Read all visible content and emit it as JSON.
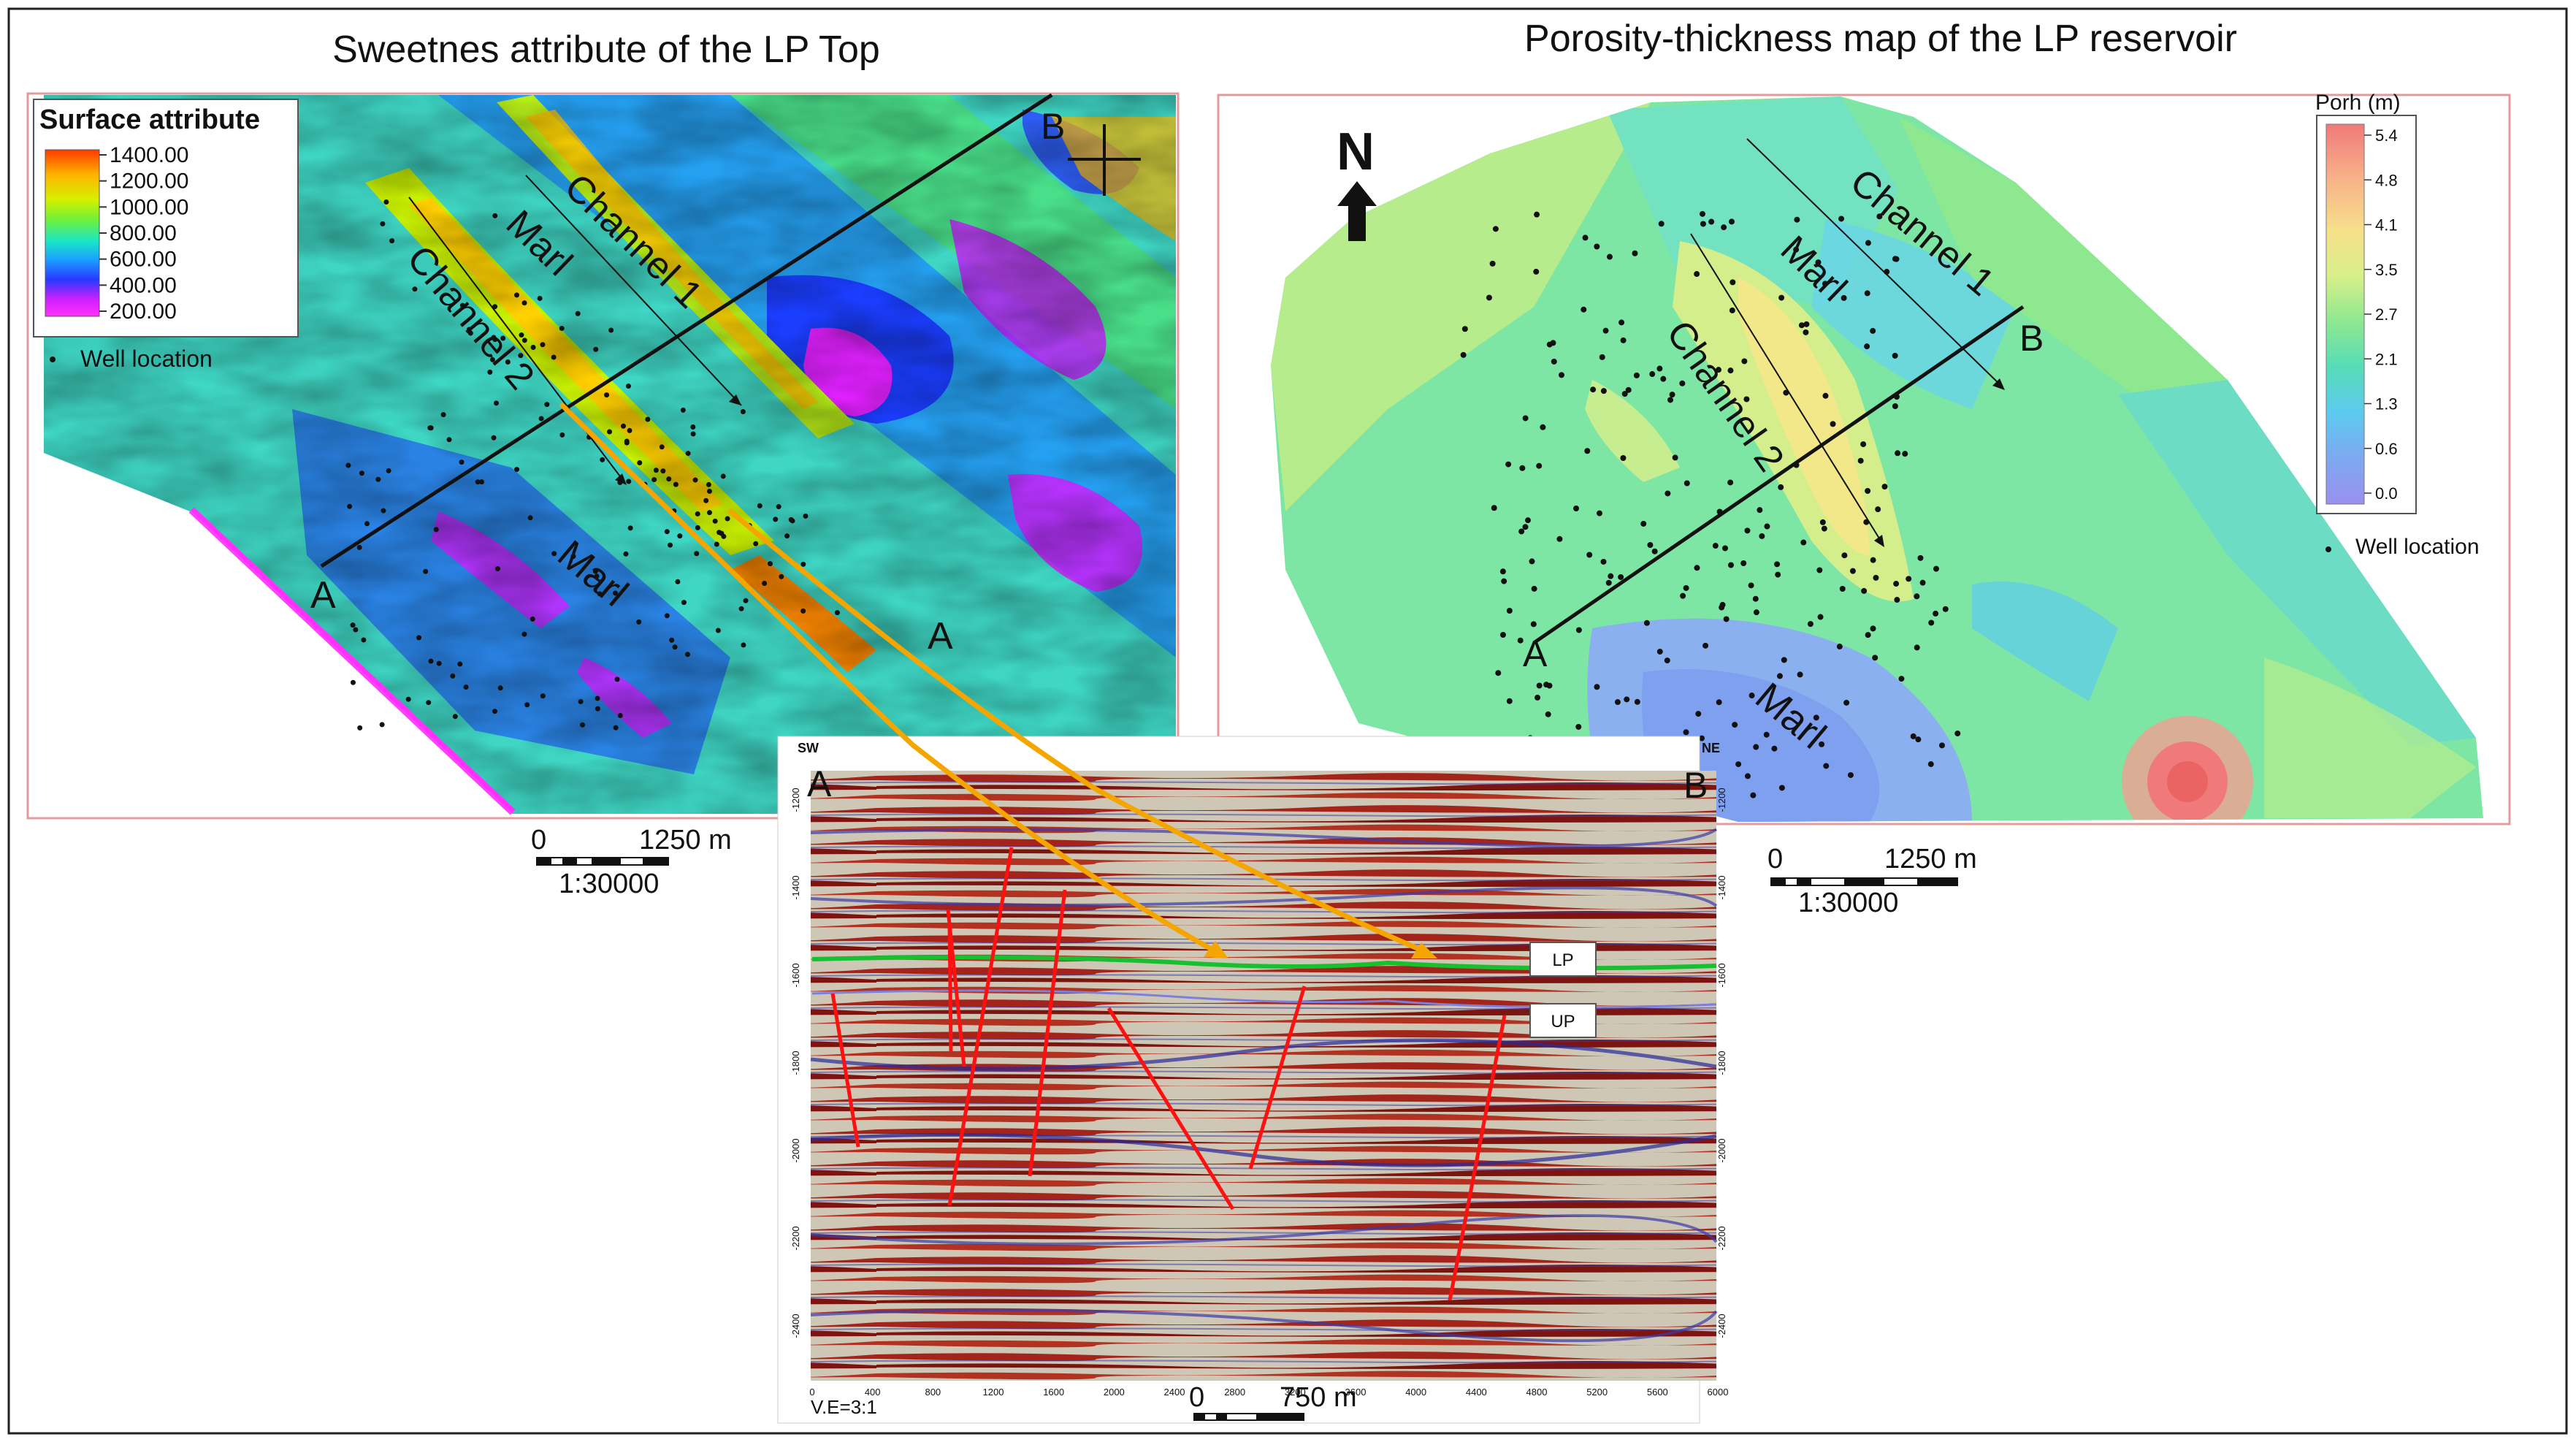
{
  "left_panel": {
    "title": "Sweetnes attribute of the LP Top",
    "legend": {
      "title": "Surface attribute",
      "ticks": [
        "1400.00",
        "1200.00",
        "1000.00",
        "800.00",
        "600.00",
        "400.00",
        "200.00"
      ],
      "well_label": "Well location",
      "colors": [
        "#ff3b00",
        "#ffb400",
        "#d6f000",
        "#6ef03a",
        "#19e6c8",
        "#1aa0ff",
        "#2838ff",
        "#d020ff",
        "#ff30ff"
      ]
    },
    "labels": {
      "channel1": "Channel 1",
      "channel2": "Channel 2",
      "marl_upper": "Marl",
      "marl_lower": "Marl",
      "point_a": "A",
      "point_b": "B",
      "point_a2": "A"
    },
    "scale": {
      "zero": "0",
      "dist": "1250 m",
      "ratio": "1:30000"
    }
  },
  "right_panel": {
    "title": "Porosity-thickness map of the LP reservoir",
    "north": "N",
    "legend": {
      "title": "Porh (m)",
      "ticks": [
        "5.4",
        "4.8",
        "4.1",
        "3.5",
        "2.7",
        "2.1",
        "1.3",
        "0.6",
        "0.0"
      ],
      "well_label": "Well location",
      "colors": [
        "#f07a7a",
        "#f8b088",
        "#f6e08a",
        "#d8ef8a",
        "#8ee890",
        "#56dcb8",
        "#5ccaf0",
        "#7ea8f0",
        "#9a90ee"
      ]
    },
    "labels": {
      "channel1": "Channel 1",
      "channel2": "Channel 2",
      "marl_upper": "Marl",
      "marl_lower": "Marl",
      "point_a": "A",
      "point_b": "B"
    },
    "scale": {
      "zero": "0",
      "dist": "1250 m",
      "ratio": "1:30000"
    }
  },
  "section": {
    "sw": "SW",
    "ne": "NE",
    "point_a": "A",
    "point_b": "B",
    "lp": "LP",
    "up": "UP",
    "ve": "V.E=3:1",
    "scale": {
      "zero": "0",
      "dist": "750 m"
    },
    "x_ticks": [
      "0",
      "400",
      "800",
      "1200",
      "1600",
      "2000",
      "2400",
      "2800",
      "3200",
      "3600",
      "4000",
      "4400",
      "4800",
      "5200",
      "5600",
      "6000"
    ],
    "y_ticks": [
      "-1200",
      "-1400",
      "-1600",
      "-1800",
      "-2000",
      "-2200",
      "-2400"
    ]
  }
}
